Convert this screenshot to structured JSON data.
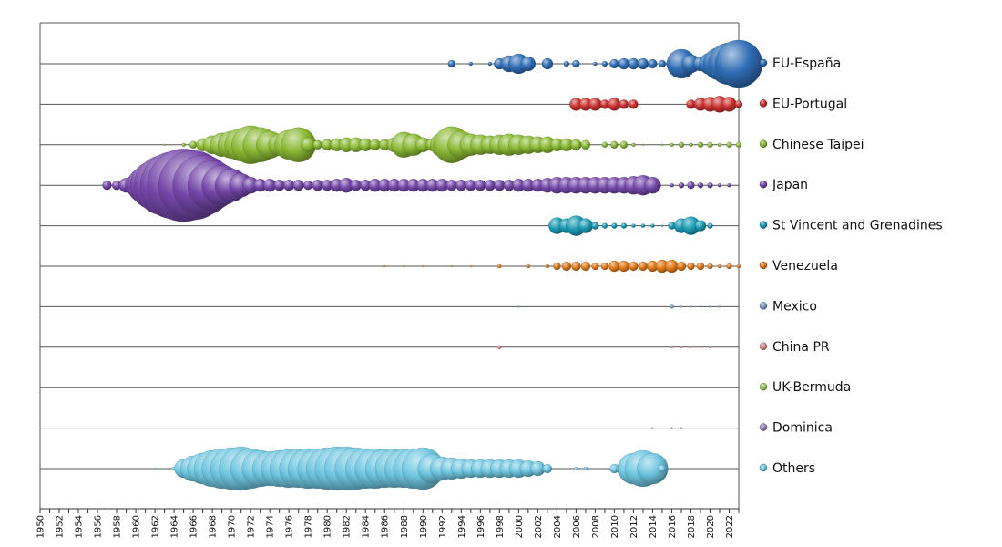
{
  "chart_data": {
    "type": "scatter",
    "subtype": "bubble-timeline",
    "title": "",
    "xlabel": "",
    "ylabel": "",
    "xlim": [
      1950,
      2023
    ],
    "x_ticks": [
      "1950",
      "1952",
      "1954",
      "1956",
      "1958",
      "1960",
      "1962",
      "1964",
      "1966",
      "1968",
      "1970",
      "1972",
      "1974",
      "1976",
      "1978",
      "1980",
      "1982",
      "1984",
      "1986",
      "1988",
      "1990",
      "1992",
      "1994",
      "1996",
      "1998",
      "2000",
      "2002",
      "2004",
      "2006",
      "2008",
      "2010",
      "2012",
      "2014",
      "2016",
      "2018",
      "2020",
      "2022"
    ],
    "legend_position": "right",
    "series": [
      {
        "name": "EU-España",
        "color": "#2f6db5",
        "points": [
          [
            1993,
            4
          ],
          [
            1995,
            2
          ],
          [
            1997,
            2
          ],
          [
            1998,
            6
          ],
          [
            1999,
            9
          ],
          [
            2000,
            11
          ],
          [
            2001,
            8
          ],
          [
            2003,
            6
          ],
          [
            2005,
            3
          ],
          [
            2006,
            4
          ],
          [
            2008,
            2
          ],
          [
            2009,
            3
          ],
          [
            2010,
            5
          ],
          [
            2011,
            6
          ],
          [
            2012,
            6
          ],
          [
            2013,
            6
          ],
          [
            2014,
            5
          ],
          [
            2015,
            4
          ],
          [
            2016,
            6
          ],
          [
            2017,
            16
          ],
          [
            2018,
            10
          ],
          [
            2019,
            8
          ],
          [
            2020,
            12
          ],
          [
            2021,
            18
          ],
          [
            2022,
            23
          ],
          [
            2023,
            26
          ]
        ]
      },
      {
        "name": "EU-Portugal",
        "color": "#c8312f",
        "points": [
          [
            2006,
            7
          ],
          [
            2007,
            7
          ],
          [
            2008,
            7
          ],
          [
            2009,
            5
          ],
          [
            2010,
            7
          ],
          [
            2011,
            5
          ],
          [
            2012,
            5
          ],
          [
            2018,
            5
          ],
          [
            2019,
            7
          ],
          [
            2020,
            8
          ],
          [
            2021,
            9
          ],
          [
            2022,
            8
          ],
          [
            2023,
            4
          ]
        ]
      },
      {
        "name": "Chinese Taipei",
        "color": "#8ab834",
        "points": [
          [
            1963,
            1
          ],
          [
            1965,
            2
          ],
          [
            1966,
            4
          ],
          [
            1967,
            7
          ],
          [
            1968,
            10
          ],
          [
            1969,
            13
          ],
          [
            1970,
            15
          ],
          [
            1971,
            18
          ],
          [
            1972,
            21
          ],
          [
            1973,
            19
          ],
          [
            1974,
            15
          ],
          [
            1975,
            12
          ],
          [
            1976,
            16
          ],
          [
            1977,
            19
          ],
          [
            1978,
            8
          ],
          [
            1979,
            5
          ],
          [
            1980,
            6
          ],
          [
            1981,
            7
          ],
          [
            1982,
            8
          ],
          [
            1983,
            8
          ],
          [
            1984,
            7
          ],
          [
            1985,
            6
          ],
          [
            1986,
            6
          ],
          [
            1987,
            8
          ],
          [
            1988,
            14
          ],
          [
            1989,
            12
          ],
          [
            1990,
            8
          ],
          [
            1991,
            7
          ],
          [
            1992,
            13
          ],
          [
            1993,
            20
          ],
          [
            1994,
            15
          ],
          [
            1995,
            12
          ],
          [
            1996,
            11
          ],
          [
            1997,
            10
          ],
          [
            1998,
            11
          ],
          [
            1999,
            12
          ],
          [
            2000,
            11
          ],
          [
            2001,
            10
          ],
          [
            2002,
            9
          ],
          [
            2003,
            9
          ],
          [
            2004,
            7
          ],
          [
            2005,
            7
          ],
          [
            2006,
            6
          ],
          [
            2007,
            5
          ],
          [
            2009,
            3
          ],
          [
            2010,
            4
          ],
          [
            2011,
            4
          ],
          [
            2012,
            2
          ],
          [
            2013,
            1
          ],
          [
            2015,
            1
          ],
          [
            2016,
            2
          ],
          [
            2017,
            3
          ],
          [
            2018,
            2
          ],
          [
            2019,
            3
          ],
          [
            2020,
            3
          ],
          [
            2021,
            2
          ],
          [
            2022,
            3
          ],
          [
            2023,
            3
          ]
        ]
      },
      {
        "name": "Japan",
        "color": "#7447a8",
        "points": [
          [
            1957,
            5
          ],
          [
            1958,
            5
          ],
          [
            1959,
            8
          ],
          [
            1960,
            12
          ],
          [
            1961,
            20
          ],
          [
            1962,
            27
          ],
          [
            1963,
            33
          ],
          [
            1964,
            37
          ],
          [
            1965,
            40
          ],
          [
            1966,
            38
          ],
          [
            1967,
            33
          ],
          [
            1968,
            27
          ],
          [
            1969,
            22
          ],
          [
            1970,
            18
          ],
          [
            1971,
            13
          ],
          [
            1972,
            9
          ],
          [
            1973,
            7
          ],
          [
            1974,
            7
          ],
          [
            1975,
            6
          ],
          [
            1976,
            6
          ],
          [
            1977,
            6
          ],
          [
            1978,
            5
          ],
          [
            1979,
            6
          ],
          [
            1980,
            6
          ],
          [
            1981,
            7
          ],
          [
            1982,
            8
          ],
          [
            1983,
            6
          ],
          [
            1984,
            6
          ],
          [
            1985,
            7
          ],
          [
            1986,
            7
          ],
          [
            1987,
            7
          ],
          [
            1988,
            7
          ],
          [
            1989,
            7
          ],
          [
            1990,
            7
          ],
          [
            1991,
            7
          ],
          [
            1992,
            7
          ],
          [
            1993,
            6
          ],
          [
            1994,
            6
          ],
          [
            1995,
            6
          ],
          [
            1996,
            6
          ],
          [
            1997,
            6
          ],
          [
            1998,
            6
          ],
          [
            1999,
            6
          ],
          [
            2000,
            7
          ],
          [
            2001,
            7
          ],
          [
            2002,
            7
          ],
          [
            2003,
            8
          ],
          [
            2004,
            9
          ],
          [
            2005,
            9
          ],
          [
            2006,
            9
          ],
          [
            2007,
            9
          ],
          [
            2008,
            9
          ],
          [
            2009,
            9
          ],
          [
            2010,
            9
          ],
          [
            2011,
            9
          ],
          [
            2012,
            10
          ],
          [
            2013,
            11
          ],
          [
            2014,
            9
          ],
          [
            2016,
            2
          ],
          [
            2017,
            3
          ],
          [
            2018,
            4
          ],
          [
            2019,
            3
          ],
          [
            2020,
            3
          ],
          [
            2021,
            2
          ],
          [
            2022,
            2
          ]
        ]
      },
      {
        "name": "St Vincent and Grenadines",
        "color": "#1b9bb3",
        "points": [
          [
            2004,
            9
          ],
          [
            2005,
            8
          ],
          [
            2006,
            11
          ],
          [
            2007,
            8
          ],
          [
            2008,
            4
          ],
          [
            2009,
            3
          ],
          [
            2010,
            3
          ],
          [
            2011,
            3
          ],
          [
            2012,
            2
          ],
          [
            2013,
            2
          ],
          [
            2014,
            2
          ],
          [
            2015,
            1
          ],
          [
            2016,
            4
          ],
          [
            2017,
            8
          ],
          [
            2018,
            10
          ],
          [
            2019,
            6
          ],
          [
            2020,
            3
          ]
        ]
      },
      {
        "name": "Venezuela",
        "color": "#e07b1c",
        "points": [
          [
            1986,
            1
          ],
          [
            1988,
            1
          ],
          [
            1990,
            1
          ],
          [
            1993,
            1
          ],
          [
            1995,
            1
          ],
          [
            1998,
            2
          ],
          [
            2001,
            2
          ],
          [
            2003,
            2
          ],
          [
            2004,
            4
          ],
          [
            2005,
            5
          ],
          [
            2006,
            5
          ],
          [
            2007,
            5
          ],
          [
            2008,
            4
          ],
          [
            2009,
            4
          ],
          [
            2010,
            6
          ],
          [
            2011,
            6
          ],
          [
            2012,
            5
          ],
          [
            2013,
            5
          ],
          [
            2014,
            6
          ],
          [
            2015,
            7
          ],
          [
            2016,
            7
          ],
          [
            2017,
            5
          ],
          [
            2018,
            4
          ],
          [
            2019,
            4
          ],
          [
            2020,
            3
          ],
          [
            2021,
            2
          ],
          [
            2022,
            3
          ],
          [
            2023,
            2
          ]
        ]
      },
      {
        "name": "Mexico",
        "color": "#7f9ac2",
        "points": [
          [
            2000,
            1
          ],
          [
            2016,
            2
          ],
          [
            2017,
            1
          ],
          [
            2018,
            1
          ],
          [
            2019,
            1
          ],
          [
            2020,
            1
          ],
          [
            2021,
            1
          ]
        ]
      },
      {
        "name": "China PR",
        "color": "#d98b8b",
        "points": [
          [
            1998,
            2
          ],
          [
            2016,
            1
          ],
          [
            2017,
            1
          ],
          [
            2018,
            1
          ],
          [
            2019,
            1
          ],
          [
            2020,
            1
          ]
        ]
      },
      {
        "name": "UK-Bermuda",
        "color": "#9cc65a",
        "points": []
      },
      {
        "name": "Dominica",
        "color": "#9a82bf",
        "points": [
          [
            2014,
            1
          ],
          [
            2016,
            1
          ],
          [
            2017,
            1
          ]
        ]
      },
      {
        "name": "Others",
        "color": "#6fc6e0",
        "points": [
          [
            1962,
            1
          ],
          [
            1964,
            2
          ],
          [
            1965,
            10
          ],
          [
            1966,
            14
          ],
          [
            1967,
            17
          ],
          [
            1968,
            20
          ],
          [
            1969,
            22
          ],
          [
            1970,
            23
          ],
          [
            1971,
            24
          ],
          [
            1972,
            22
          ],
          [
            1973,
            20
          ],
          [
            1974,
            19
          ],
          [
            1975,
            20
          ],
          [
            1976,
            21
          ],
          [
            1977,
            21
          ],
          [
            1978,
            22
          ],
          [
            1979,
            22
          ],
          [
            1980,
            23
          ],
          [
            1981,
            24
          ],
          [
            1982,
            24
          ],
          [
            1983,
            23
          ],
          [
            1984,
            22
          ],
          [
            1985,
            22
          ],
          [
            1986,
            21
          ],
          [
            1987,
            21
          ],
          [
            1988,
            21
          ],
          [
            1989,
            22
          ],
          [
            1990,
            23
          ],
          [
            1991,
            16
          ],
          [
            1992,
            13
          ],
          [
            1993,
            12
          ],
          [
            1994,
            11
          ],
          [
            1995,
            10
          ],
          [
            1996,
            10
          ],
          [
            1997,
            10
          ],
          [
            1998,
            10
          ],
          [
            1999,
            10
          ],
          [
            2000,
            10
          ],
          [
            2001,
            9
          ],
          [
            2002,
            8
          ],
          [
            2003,
            5
          ],
          [
            2006,
            2
          ],
          [
            2007,
            2
          ],
          [
            2010,
            5
          ],
          [
            2011,
            8
          ],
          [
            2012,
            17
          ],
          [
            2013,
            20
          ],
          [
            2014,
            17
          ],
          [
            2015,
            4
          ]
        ]
      }
    ]
  }
}
